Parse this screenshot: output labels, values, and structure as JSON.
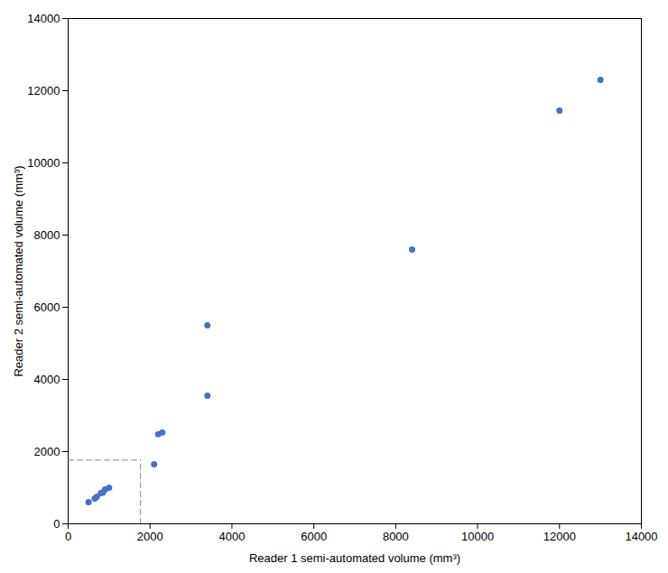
{
  "chart_data": {
    "type": "scatter",
    "x": [
      500,
      650,
      700,
      800,
      850,
      900,
      1000,
      2100,
      2200,
      2300,
      3400,
      3400,
      8400,
      12000,
      13000
    ],
    "y": [
      600,
      700,
      750,
      850,
      870,
      950,
      1000,
      1650,
      2480,
      2530,
      3550,
      5500,
      7600,
      11450,
      12300
    ],
    "color": "#4472C4",
    "marker": "circle",
    "xlabel": "Reader 1 semi-automated volume (mm³)",
    "ylabel": "Reader 2 semi-automated volume (mm³)",
    "xlim": [
      0,
      14000
    ],
    "ylim": [
      0,
      14000
    ],
    "xticks": [
      0,
      2000,
      4000,
      6000,
      8000,
      10000,
      12000,
      14000
    ],
    "yticks": [
      0,
      2000,
      4000,
      6000,
      8000,
      10000,
      12000,
      14000
    ],
    "threshold": {
      "value": 1767,
      "color": "#888888",
      "line_style": "dashed"
    },
    "grid": false
  }
}
